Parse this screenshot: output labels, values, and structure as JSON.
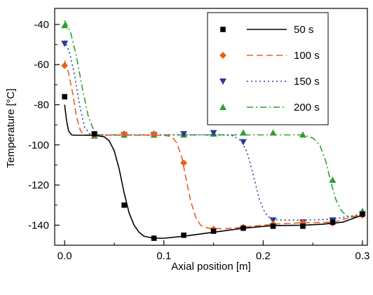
{
  "chart_data": {
    "type": "line",
    "xlabel": "Axial position [m]",
    "ylabel": "Temperature [°C]",
    "xlim": [
      -0.01,
      0.305
    ],
    "ylim": [
      -150,
      -32
    ],
    "x_ticks": [
      0.0,
      0.1,
      0.2,
      0.3
    ],
    "x_tick_labels": [
      "0.0",
      "0.1",
      "0.2",
      "0.3"
    ],
    "y_ticks": [
      -140,
      -120,
      -100,
      -80,
      -60,
      -40
    ],
    "y_tick_labels": [
      "-140",
      "-120",
      "-100",
      "-80",
      "-60",
      "-40"
    ],
    "grid": false,
    "legend_position": "top-right",
    "series": [
      {
        "name": "50 s",
        "color": "#000000",
        "marker": "square",
        "line_style": "solid",
        "markers": [
          [
            0.0,
            -76
          ],
          [
            0.03,
            -94.5
          ],
          [
            0.06,
            -130
          ],
          [
            0.09,
            -146.5
          ],
          [
            0.12,
            -145
          ],
          [
            0.15,
            -143
          ],
          [
            0.18,
            -141.5
          ],
          [
            0.21,
            -140.5
          ],
          [
            0.24,
            -140.5
          ],
          [
            0.27,
            -138.5
          ],
          [
            0.3,
            -134.5
          ]
        ],
        "curve": [
          [
            0.0,
            -80
          ],
          [
            0.002,
            -88
          ],
          [
            0.004,
            -93
          ],
          [
            0.007,
            -95
          ],
          [
            0.01,
            -95.2
          ],
          [
            0.03,
            -95.2
          ],
          [
            0.04,
            -96
          ],
          [
            0.045,
            -98
          ],
          [
            0.05,
            -103
          ],
          [
            0.055,
            -112
          ],
          [
            0.06,
            -124
          ],
          [
            0.065,
            -134
          ],
          [
            0.07,
            -140
          ],
          [
            0.075,
            -143.5
          ],
          [
            0.08,
            -145.5
          ],
          [
            0.09,
            -146.5
          ],
          [
            0.1,
            -146.5
          ],
          [
            0.12,
            -145.5
          ],
          [
            0.15,
            -143.5
          ],
          [
            0.18,
            -141.5
          ],
          [
            0.21,
            -140.2
          ],
          [
            0.24,
            -140
          ],
          [
            0.26,
            -139.5
          ],
          [
            0.28,
            -138.5
          ],
          [
            0.3,
            -135
          ]
        ]
      },
      {
        "name": "100 s",
        "color": "#e8601c",
        "marker": "diamond",
        "line_style": "dashed",
        "markers": [
          [
            0.0,
            -60.5
          ],
          [
            0.03,
            -95
          ],
          [
            0.06,
            -94.5
          ],
          [
            0.09,
            -94.5
          ],
          [
            0.12,
            -109
          ],
          [
            0.15,
            -142
          ],
          [
            0.18,
            -141
          ],
          [
            0.21,
            -139.5
          ],
          [
            0.24,
            -139
          ],
          [
            0.27,
            -139
          ],
          [
            0.3,
            -135
          ]
        ],
        "curve": [
          [
            0.0,
            -58
          ],
          [
            0.004,
            -64
          ],
          [
            0.008,
            -74
          ],
          [
            0.012,
            -86
          ],
          [
            0.016,
            -93
          ],
          [
            0.02,
            -95
          ],
          [
            0.03,
            -95.2
          ],
          [
            0.1,
            -95.2
          ],
          [
            0.108,
            -96
          ],
          [
            0.113,
            -99
          ],
          [
            0.118,
            -106
          ],
          [
            0.122,
            -116
          ],
          [
            0.127,
            -128
          ],
          [
            0.132,
            -136
          ],
          [
            0.137,
            -140
          ],
          [
            0.145,
            -141.5
          ],
          [
            0.16,
            -141.8
          ],
          [
            0.18,
            -141
          ],
          [
            0.21,
            -139.5
          ],
          [
            0.24,
            -138.8
          ],
          [
            0.27,
            -138.5
          ],
          [
            0.3,
            -134.5
          ]
        ]
      },
      {
        "name": "150 s",
        "color": "#2a3a9a",
        "marker": "triangle-down",
        "line_style": "dotted",
        "markers": [
          [
            0.0,
            -49.5
          ],
          [
            0.03,
            -95
          ],
          [
            0.06,
            -95
          ],
          [
            0.09,
            -95
          ],
          [
            0.12,
            -94.5
          ],
          [
            0.15,
            -94
          ],
          [
            0.18,
            -98.5
          ],
          [
            0.21,
            -137.5
          ],
          [
            0.24,
            -138.5
          ],
          [
            0.27,
            -137.5
          ],
          [
            0.3,
            -134.5
          ]
        ],
        "curve": [
          [
            0.0,
            -48
          ],
          [
            0.005,
            -54
          ],
          [
            0.01,
            -65
          ],
          [
            0.015,
            -80
          ],
          [
            0.02,
            -91
          ],
          [
            0.025,
            -94.5
          ],
          [
            0.03,
            -95
          ],
          [
            0.16,
            -95
          ],
          [
            0.17,
            -95.5
          ],
          [
            0.178,
            -98
          ],
          [
            0.184,
            -104
          ],
          [
            0.19,
            -115
          ],
          [
            0.196,
            -127
          ],
          [
            0.202,
            -134
          ],
          [
            0.208,
            -137
          ],
          [
            0.22,
            -137.5
          ],
          [
            0.24,
            -137.5
          ],
          [
            0.27,
            -137
          ],
          [
            0.3,
            -134.5
          ]
        ]
      },
      {
        "name": "200 s",
        "color": "#2ca02c",
        "marker": "triangle-up",
        "line_style": "dashdot",
        "markers": [
          [
            0.0,
            -40.5
          ],
          [
            0.03,
            -95.5
          ],
          [
            0.06,
            -95
          ],
          [
            0.09,
            -95
          ],
          [
            0.12,
            -95
          ],
          [
            0.15,
            -94.5
          ],
          [
            0.18,
            -94
          ],
          [
            0.21,
            -94
          ],
          [
            0.24,
            -95
          ],
          [
            0.27,
            -117.5
          ],
          [
            0.3,
            -133
          ]
        ],
        "curve": [
          [
            0.0,
            -38
          ],
          [
            0.006,
            -44
          ],
          [
            0.012,
            -56
          ],
          [
            0.018,
            -72
          ],
          [
            0.024,
            -86
          ],
          [
            0.03,
            -93.5
          ],
          [
            0.035,
            -95
          ],
          [
            0.24,
            -95
          ],
          [
            0.25,
            -96.5
          ],
          [
            0.257,
            -100
          ],
          [
            0.263,
            -108
          ],
          [
            0.268,
            -118
          ],
          [
            0.273,
            -127
          ],
          [
            0.279,
            -133
          ],
          [
            0.285,
            -135.5
          ],
          [
            0.29,
            -136
          ],
          [
            0.3,
            -135
          ]
        ]
      }
    ]
  }
}
